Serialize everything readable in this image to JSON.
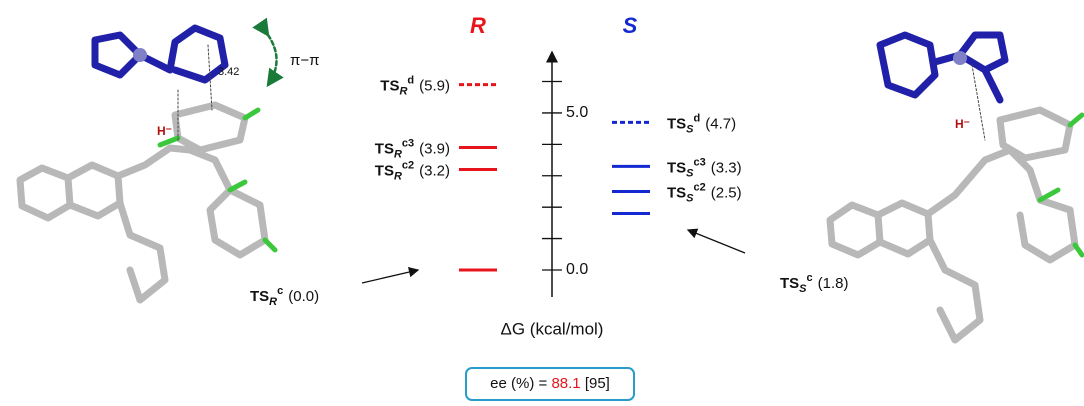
{
  "chart_data": {
    "type": "energy",
    "axis_label": "ΔG (kcal/mol)",
    "ylim": [
      -0.86,
      6.94
    ],
    "yticks": [
      {
        "value": 0,
        "label": "0.0"
      },
      {
        "value": 5,
        "label": "5.0"
      }
    ],
    "minor_yticks": [
      1,
      2,
      3,
      4,
      6
    ],
    "ts_prefix": "TS",
    "series": [
      {
        "name": "R",
        "color": "#e8141c",
        "values": [
          0.0,
          3.2,
          3.9,
          5.9
        ],
        "value_labels": [
          "(0.0)",
          "(3.2)",
          "(3.9)",
          "(5.9)"
        ],
        "level_names": [
          "c",
          "c2",
          "c3",
          "d"
        ],
        "dashed": [
          false,
          false,
          false,
          true
        ]
      },
      {
        "name": "S",
        "color": "#1428d2",
        "values": [
          1.8,
          2.5,
          3.3,
          4.7
        ],
        "value_labels": [
          "(1.8)",
          "(2.5)",
          "(3.3)",
          "(4.7)"
        ],
        "level_names": [
          "c",
          "c2",
          "c3",
          "d"
        ],
        "dashed": [
          false,
          false,
          false,
          true
        ]
      }
    ],
    "ee": {
      "prefix": "ee (%) =",
      "value": 88.1,
      "experimental": "[95]"
    },
    "annotations": {
      "pi": "π−π",
      "distance": 3.42,
      "hydride": "H⁻"
    }
  }
}
